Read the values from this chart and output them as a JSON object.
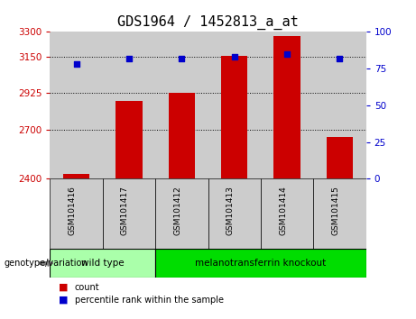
{
  "title": "GDS1964 / 1452813_a_at",
  "samples": [
    "GSM101416",
    "GSM101417",
    "GSM101412",
    "GSM101413",
    "GSM101414",
    "GSM101415"
  ],
  "counts": [
    2430,
    2875,
    2925,
    3155,
    3275,
    2655
  ],
  "percentiles": [
    78,
    82,
    82,
    83,
    85,
    82
  ],
  "ylim_left": [
    2400,
    3300
  ],
  "yticks_left": [
    2400,
    2700,
    2925,
    3150,
    3300
  ],
  "ylim_right": [
    0,
    100
  ],
  "yticks_right": [
    0,
    25,
    50,
    75,
    100
  ],
  "bar_color": "#cc0000",
  "dot_color": "#0000cc",
  "bar_width": 0.5,
  "groups": [
    {
      "label": "wild type",
      "indices": [
        0,
        1
      ],
      "color": "#aaffaa"
    },
    {
      "label": "melanotransferrin knockout",
      "indices": [
        2,
        3,
        4,
        5
      ],
      "color": "#00dd00"
    }
  ],
  "group_label": "genotype/variation",
  "legend_count": "count",
  "legend_percentile": "percentile rank within the sample",
  "title_fontsize": 11,
  "axis_color_left": "#cc0000",
  "axis_color_right": "#0000cc",
  "tick_area_color": "#cccccc",
  "bg_color": "#ffffff"
}
